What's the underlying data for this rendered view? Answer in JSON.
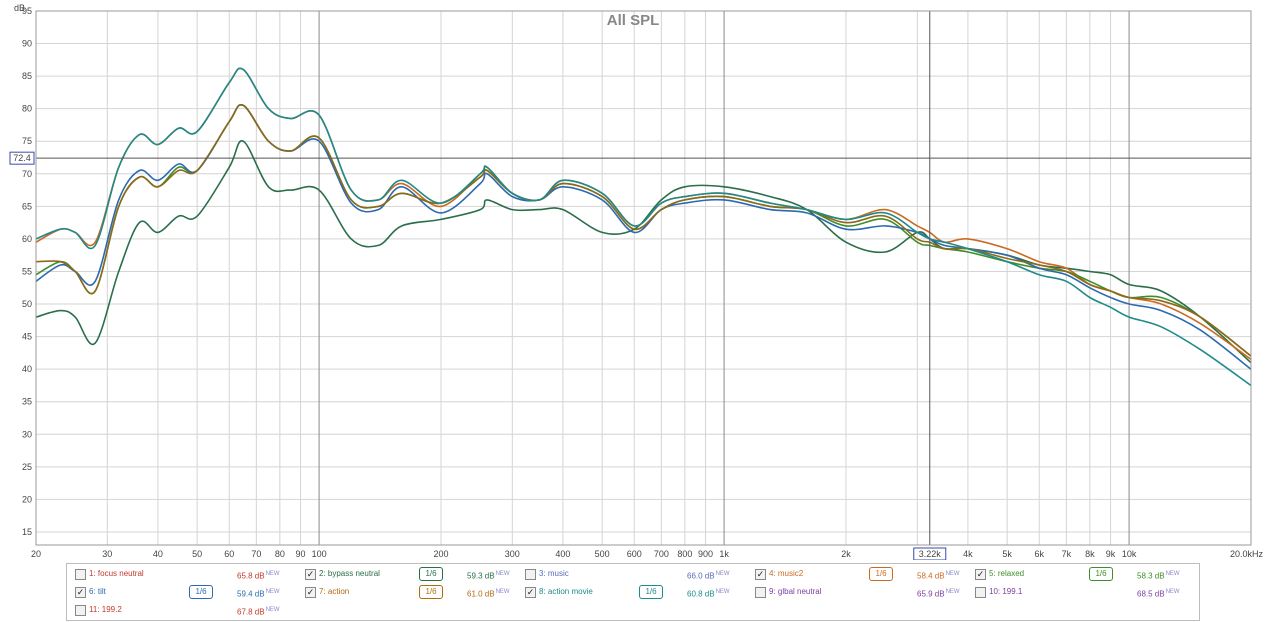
{
  "chart_data": {
    "type": "line",
    "title": "All SPL",
    "ylabel": "dB",
    "ylim": [
      13,
      95
    ],
    "xlim": [
      20,
      20000
    ],
    "xscale": "log",
    "grid": true,
    "y_ticks": [
      "15",
      "20",
      "25",
      "30",
      "35",
      "40",
      "45",
      "50",
      "55",
      "60",
      "65",
      "70",
      "75",
      "80",
      "85",
      "90",
      "95"
    ],
    "y_tick_values": [
      15,
      20,
      25,
      30,
      35,
      40,
      45,
      50,
      55,
      60,
      65,
      70,
      75,
      80,
      85,
      90,
      95
    ],
    "x_ticks": [
      "20",
      "30",
      "40",
      "50",
      "60",
      "70",
      "80",
      "90",
      "100",
      "200",
      "300",
      "400",
      "500",
      "600",
      "700",
      "800",
      "900",
      "1k",
      "2k",
      "4k",
      "5k",
      "6k",
      "7k",
      "8k",
      "9k",
      "10k",
      "20.0kHz"
    ],
    "x_tick_values": [
      20,
      30,
      40,
      50,
      60,
      70,
      80,
      90,
      100,
      200,
      300,
      400,
      500,
      600,
      700,
      800,
      900,
      1000,
      2000,
      4000,
      5000,
      6000,
      7000,
      8000,
      9000,
      10000,
      20000
    ],
    "x_minor": [
      3000
    ],
    "cursor": {
      "x": 3220,
      "y": 72.4,
      "x_label": "3.22k",
      "y_label": "72.4"
    },
    "series": [
      {
        "name": "2: bypass neutral",
        "color": "#2a6e4a",
        "x": [
          20,
          23,
          25,
          28,
          32,
          36,
          40,
          45,
          50,
          60,
          65,
          75,
          85,
          100,
          120,
          140,
          160,
          200,
          250,
          260,
          300,
          350,
          400,
          500,
          600,
          700,
          800,
          1000,
          1300,
          1600,
          2000,
          2500,
          3000,
          3220,
          3500,
          4000,
          5000,
          6000,
          7000,
          8000,
          9000,
          10000,
          12000,
          15000,
          20000
        ],
        "y": [
          48,
          49,
          48,
          44,
          55,
          62.5,
          61,
          63.5,
          63.5,
          71,
          75,
          68,
          67.5,
          67.5,
          60,
          59,
          62,
          63,
          64.5,
          66,
          64.5,
          64.5,
          64.5,
          61,
          61.5,
          66,
          68,
          68,
          66.5,
          64.5,
          59.5,
          58,
          61,
          60,
          58.5,
          58.5,
          57.5,
          56,
          55.5,
          55,
          54.5,
          53,
          52,
          48,
          41
        ]
      },
      {
        "name": "4: music2",
        "color": "#cc6a22",
        "x": [
          20,
          23,
          25,
          28,
          32,
          36,
          40,
          45,
          50,
          60,
          65,
          75,
          85,
          100,
          120,
          140,
          160,
          200,
          250,
          260,
          300,
          350,
          400,
          500,
          600,
          700,
          800,
          1000,
          1300,
          1600,
          2000,
          2500,
          3000,
          3220,
          3500,
          4000,
          5000,
          6000,
          7000,
          8000,
          9000,
          10000,
          12000,
          15000,
          20000
        ],
        "y": [
          59.5,
          61.5,
          61,
          59.5,
          71,
          76,
          74.5,
          77,
          76.5,
          84,
          86,
          80,
          78.5,
          79,
          67.5,
          66,
          68.5,
          65,
          70,
          71,
          67,
          66,
          69,
          67,
          62,
          65.5,
          66.5,
          67,
          65.5,
          64.5,
          63,
          64.5,
          62,
          61,
          59.5,
          60,
          58.5,
          56.5,
          55.5,
          53,
          52,
          51,
          50,
          47,
          41.5
        ]
      },
      {
        "name": "5: relaxed",
        "color": "#3e8e2a",
        "x": [
          20,
          23,
          25,
          28,
          32,
          36,
          40,
          45,
          50,
          60,
          65,
          75,
          85,
          100,
          120,
          140,
          160,
          200,
          250,
          260,
          300,
          350,
          400,
          500,
          600,
          700,
          800,
          1000,
          1300,
          1600,
          2000,
          2500,
          3000,
          3220,
          3500,
          4000,
          5000,
          6000,
          7000,
          8000,
          9000,
          10000,
          12000,
          15000,
          20000
        ],
        "y": [
          54.5,
          56.5,
          55,
          52,
          65,
          69.5,
          68,
          71,
          70.5,
          78,
          80.5,
          75,
          73.5,
          75.5,
          66,
          65,
          67,
          65.5,
          69.5,
          70.5,
          67,
          66,
          68.5,
          66.5,
          61.5,
          64.5,
          66,
          66.5,
          65,
          64.5,
          62,
          63,
          59.5,
          59,
          58.5,
          58,
          56.5,
          55.5,
          55,
          53.5,
          52,
          51,
          51,
          48,
          42
        ]
      },
      {
        "name": "6: tilt",
        "color": "#2b6ab0",
        "x": [
          20,
          23,
          25,
          28,
          32,
          36,
          40,
          45,
          50,
          60,
          65,
          75,
          85,
          100,
          120,
          140,
          160,
          200,
          250,
          260,
          300,
          350,
          400,
          500,
          600,
          700,
          800,
          1000,
          1300,
          1600,
          2000,
          2500,
          3000,
          3220,
          3500,
          4000,
          5000,
          6000,
          7000,
          8000,
          9000,
          10000,
          12000,
          15000,
          20000
        ],
        "y": [
          53.5,
          56,
          55,
          53.5,
          66,
          70.5,
          69,
          71.5,
          70.5,
          78,
          80.5,
          75,
          73.5,
          75,
          65.5,
          64.5,
          68,
          64,
          68.5,
          70,
          66.5,
          66,
          68,
          66,
          61,
          64.5,
          65.5,
          66,
          64.5,
          64,
          61.5,
          62,
          61,
          60,
          59,
          58.5,
          57.5,
          55.5,
          54.5,
          52.5,
          51,
          50,
          49,
          46,
          40
        ]
      },
      {
        "name": "7: action",
        "color": "#8e6a18",
        "x": [
          20,
          23,
          25,
          28,
          32,
          36,
          40,
          45,
          50,
          60,
          65,
          75,
          85,
          100,
          120,
          140,
          160,
          200,
          250,
          260,
          300,
          350,
          400,
          500,
          600,
          700,
          800,
          1000,
          1300,
          1600,
          2000,
          2500,
          3000,
          3220,
          3500,
          4000,
          5000,
          6000,
          7000,
          8000,
          9000,
          10000,
          12000,
          15000,
          20000
        ],
        "y": [
          56.5,
          56.5,
          55,
          52,
          65,
          69.5,
          68,
          70.5,
          70.5,
          78,
          80.5,
          75,
          73.5,
          75.5,
          66,
          65,
          67,
          65.5,
          69.5,
          70.5,
          67,
          66,
          68.5,
          66.5,
          61.5,
          64.5,
          66,
          66.5,
          65,
          64.5,
          62.5,
          63.5,
          60,
          59.5,
          58.5,
          58.5,
          57,
          56,
          55,
          53,
          52,
          51,
          50.5,
          48,
          42
        ]
      },
      {
        "name": "8: action movie",
        "color": "#1f8a8a",
        "x": [
          20,
          23,
          25,
          28,
          32,
          36,
          40,
          45,
          50,
          60,
          65,
          75,
          85,
          100,
          120,
          140,
          160,
          200,
          250,
          260,
          300,
          350,
          400,
          500,
          600,
          700,
          800,
          1000,
          1300,
          1600,
          2000,
          2500,
          3000,
          3220,
          3500,
          4000,
          5000,
          6000,
          7000,
          8000,
          9000,
          10000,
          12000,
          15000,
          20000
        ],
        "y": [
          60,
          61.5,
          61,
          59,
          71,
          76,
          74.5,
          77,
          76.5,
          84,
          86,
          80,
          78.5,
          79,
          67.5,
          66,
          69,
          65.5,
          70,
          71,
          67,
          66,
          69,
          67,
          62,
          65.5,
          66.5,
          67,
          65.5,
          64.5,
          63,
          64,
          61,
          60,
          59.5,
          58.5,
          56.5,
          54.5,
          53.5,
          51,
          49.5,
          48,
          46.5,
          43,
          37.5
        ]
      }
    ]
  },
  "legend": [
    {
      "checked": false,
      "label": "1: focus neutral",
      "color": "#c0392b",
      "value": "65.8 dB",
      "smooth": ""
    },
    {
      "checked": true,
      "label": "2: bypass neutral",
      "color": "#2a6e4a",
      "value": "59.3 dB",
      "smooth": "1/6"
    },
    {
      "checked": false,
      "label": "3: music",
      "color": "#5a6ab8",
      "value": "66.0 dB",
      "smooth": ""
    },
    {
      "checked": true,
      "label": "4: music2",
      "color": "#cc6a22",
      "value": "58.4 dB",
      "smooth": "1/6"
    },
    {
      "checked": true,
      "label": "5: relaxed",
      "color": "#3e8e2a",
      "value": "58.3 dB",
      "smooth": "1/6"
    },
    {
      "checked": true,
      "label": "6: tilt",
      "color": "#2b6ab0",
      "value": "59.4 dB",
      "smooth": "1/6"
    },
    {
      "checked": true,
      "label": "7: action",
      "color": "#b06a10",
      "value": "61.0 dB",
      "smooth": "1/6"
    },
    {
      "checked": true,
      "label": "8: action movie",
      "color": "#1f8a8a",
      "value": "60.8 dB",
      "smooth": "1/6"
    },
    {
      "checked": false,
      "label": "9: glbal neutral",
      "color": "#7a3fa0",
      "value": "65.9 dB",
      "smooth": ""
    },
    {
      "checked": false,
      "label": "10: 199.1",
      "color": "#7a3fa0",
      "value": "68.5 dB",
      "smooth": ""
    },
    {
      "checked": false,
      "label": "11: 199.2",
      "color": "#c0392b",
      "value": "67.8 dB",
      "smooth": ""
    }
  ],
  "legend_badge": "NEW",
  "check_mark": "✓"
}
